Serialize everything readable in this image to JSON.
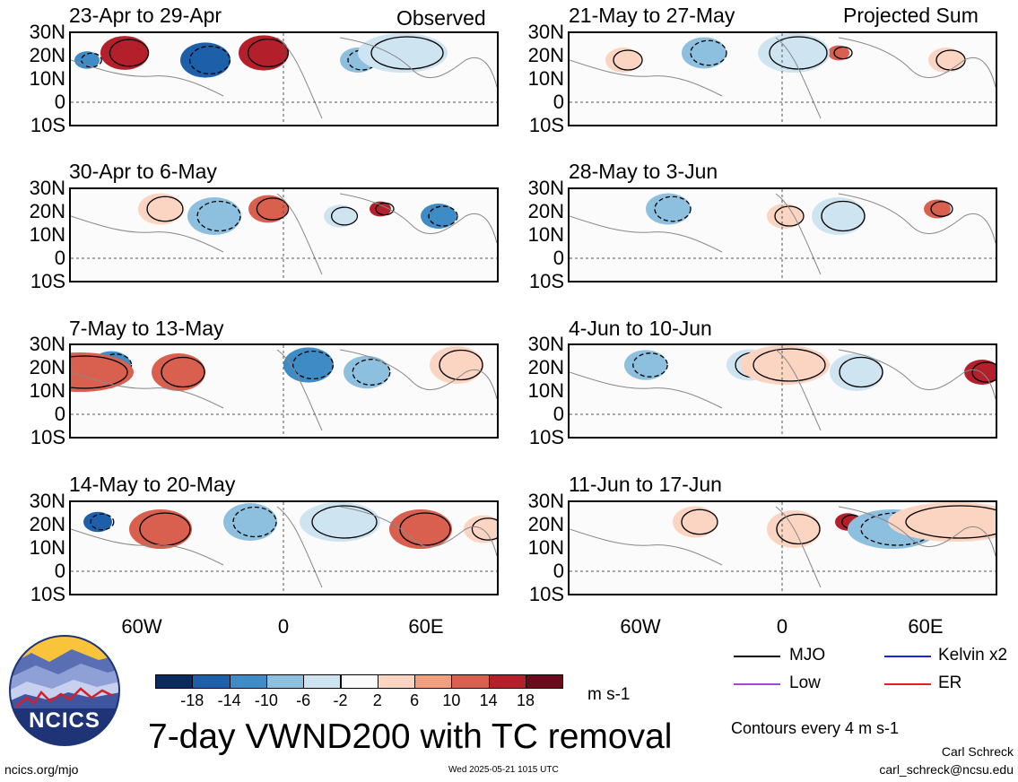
{
  "header": {
    "observed_label": "Observed",
    "projected_label": "Projected Sum"
  },
  "panels_left": [
    {
      "title": "23-Apr to 29-Apr"
    },
    {
      "title": "30-Apr to 6-May"
    },
    {
      "title": "7-May to 13-May"
    },
    {
      "title": "14-May to 20-May"
    }
  ],
  "panels_right": [
    {
      "title": "21-May to 27-May"
    },
    {
      "title": "28-May to 3-Jun"
    },
    {
      "title": "4-Jun to 10-Jun"
    },
    {
      "title": "11-Jun to 17-Jun"
    }
  ],
  "axis": {
    "lat_labels": [
      "30N",
      "20N",
      "10N",
      "0",
      "10S"
    ],
    "lon_labels": [
      "60W",
      "0",
      "60E"
    ]
  },
  "colorbar": {
    "labels": [
      "-18",
      "-14",
      "-10",
      "-6",
      "-2",
      "2",
      "6",
      "10",
      "14",
      "18"
    ],
    "colors": [
      "#0a2a5e",
      "#1d5fa8",
      "#3f8bc6",
      "#8dbfdf",
      "#cfe4f1",
      "#fbfbfb",
      "#fbd5c2",
      "#f0a07f",
      "#d9604e",
      "#b31f2a",
      "#6b0a1c"
    ],
    "units": "m s-1"
  },
  "legend": [
    {
      "label": "MJO",
      "color": "#000000"
    },
    {
      "label": "Kelvin x2",
      "color": "#1a24e0"
    },
    {
      "label": "Low",
      "color": "#a04bd6"
    },
    {
      "label": "ER",
      "color": "#e02020"
    }
  ],
  "contour_note": "Contours every 4 m s-1",
  "main_title": "7-day VWND200 with TC removal",
  "logo_text": "NCICS",
  "footer": {
    "url": "ncics.org/mjo",
    "timestamp": "Wed 2025-05-21 1015 UTC",
    "author": "Carl Schreck",
    "email": "carl_schreck@ncsu.edu"
  }
}
